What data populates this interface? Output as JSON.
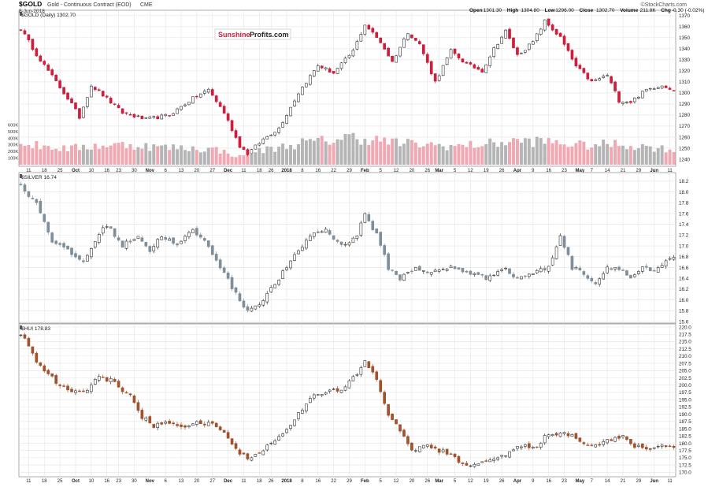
{
  "header": {
    "symbol": "$GOLD",
    "description": "Gold - Continuous Contract (EOD)",
    "exchange": "CME",
    "date": "8-Jun-2018",
    "watermark": "©StockCharts.com",
    "ohlc": [
      {
        "label": "Open",
        "value": "1301.30"
      },
      {
        "label": "High",
        "value": "1304.80"
      },
      {
        "label": "Low",
        "value": "1296.00"
      },
      {
        "label": "Close",
        "value": "1302.70"
      },
      {
        "label": "Volume",
        "value": "211.8K"
      },
      {
        "label": "Chg",
        "value": "-0.30 (-0.02%)"
      }
    ]
  },
  "logo": {
    "part1": "Sunshine",
    "part2": "Profits.com"
  },
  "colors": {
    "up": "#ffffff",
    "gold_down": "#cc1f3c",
    "silver_down": "#7f8e99",
    "hui_down": "#a0522d",
    "vol_up": "#b5b5b5",
    "vol_down": "#f0a8b3",
    "grid": "#e4e4e4"
  },
  "x_axis": {
    "labels": [
      "11",
      "18",
      "25",
      "Oct",
      "10",
      "16",
      "23",
      "30",
      "Nov",
      "6",
      "13",
      "20",
      "27",
      "Dec",
      "11",
      "18",
      "26",
      "2018",
      "8",
      "16",
      "22",
      "29",
      "Feb",
      "5",
      "12",
      "20",
      "26",
      "Mar",
      "5",
      "12",
      "19",
      "26",
      "Apr",
      "9",
      "16",
      "23",
      "May",
      "7",
      "14",
      "21",
      "29",
      "Jun",
      "11"
    ]
  },
  "chart_data": [
    {
      "type": "candlestick",
      "panel": "gold",
      "label": "$GOLD (Daily) 1302.70",
      "ylim": [
        1235,
        1372
      ],
      "yticks": [
        "1240",
        "1250",
        "1260",
        "1270",
        "1280",
        "1290",
        "1300",
        "1310",
        "1320",
        "1330",
        "1340",
        "1350",
        "1360",
        "1370"
      ],
      "volume_ticks": [
        "100K",
        "200K",
        "300K",
        "400K",
        "500K",
        "600K"
      ],
      "anchors": [
        [
          0,
          1358
        ],
        [
          4,
          1335
        ],
        [
          9,
          1310
        ],
        [
          13,
          1290
        ],
        [
          15,
          1278
        ],
        [
          18,
          1307
        ],
        [
          21,
          1298
        ],
        [
          26,
          1282
        ],
        [
          32,
          1276
        ],
        [
          38,
          1280
        ],
        [
          44,
          1295
        ],
        [
          48,
          1303
        ],
        [
          52,
          1282
        ],
        [
          56,
          1252
        ],
        [
          58,
          1245
        ],
        [
          62,
          1258
        ],
        [
          66,
          1268
        ],
        [
          71,
          1300
        ],
        [
          76,
          1325
        ],
        [
          80,
          1318
        ],
        [
          85,
          1338
        ],
        [
          88,
          1362
        ],
        [
          92,
          1346
        ],
        [
          95,
          1328
        ],
        [
          99,
          1355
        ],
        [
          102,
          1344
        ],
        [
          106,
          1310
        ],
        [
          110,
          1338
        ],
        [
          114,
          1326
        ],
        [
          118,
          1320
        ],
        [
          121,
          1340
        ],
        [
          124,
          1356
        ],
        [
          127,
          1334
        ],
        [
          131,
          1346
        ],
        [
          134,
          1365
        ],
        [
          138,
          1350
        ],
        [
          142,
          1324
        ],
        [
          146,
          1310
        ],
        [
          150,
          1316
        ],
        [
          153,
          1293
        ],
        [
          156,
          1292
        ],
        [
          160,
          1303
        ],
        [
          164,
          1307
        ],
        [
          167,
          1303
        ]
      ],
      "volume_anchors": [
        [
          0,
          310
        ],
        [
          6,
          280
        ],
        [
          12,
          240
        ],
        [
          20,
          290
        ],
        [
          28,
          300
        ],
        [
          34,
          270
        ],
        [
          42,
          250
        ],
        [
          50,
          230
        ],
        [
          56,
          120
        ],
        [
          60,
          200
        ],
        [
          66,
          260
        ],
        [
          72,
          330
        ],
        [
          78,
          360
        ],
        [
          84,
          420
        ],
        [
          90,
          380
        ],
        [
          96,
          330
        ],
        [
          104,
          300
        ],
        [
          112,
          280
        ],
        [
          120,
          320
        ],
        [
          128,
          360
        ],
        [
          136,
          340
        ],
        [
          144,
          290
        ],
        [
          152,
          310
        ],
        [
          160,
          270
        ],
        [
          167,
          230
        ]
      ]
    },
    {
      "type": "candlestick",
      "panel": "silver",
      "label": "$SILVER 16.74",
      "ylim": [
        15.6,
        18.3
      ],
      "yticks": [
        "15.6",
        "15.8",
        "16.0",
        "16.2",
        "16.4",
        "16.6",
        "16.8",
        "17.0",
        "17.2",
        "17.4",
        "17.6",
        "17.8",
        "18.0",
        "18.2"
      ],
      "anchors": [
        [
          0,
          18.1
        ],
        [
          4,
          17.8
        ],
        [
          8,
          17.1
        ],
        [
          12,
          16.9
        ],
        [
          16,
          16.7
        ],
        [
          19,
          17.1
        ],
        [
          22,
          17.4
        ],
        [
          26,
          17.0
        ],
        [
          30,
          17.2
        ],
        [
          33,
          16.9
        ],
        [
          36,
          17.2
        ],
        [
          40,
          17.0
        ],
        [
          44,
          17.3
        ],
        [
          48,
          17.0
        ],
        [
          52,
          16.5
        ],
        [
          55,
          16.1
        ],
        [
          58,
          15.8
        ],
        [
          62,
          16.0
        ],
        [
          66,
          16.4
        ],
        [
          70,
          16.8
        ],
        [
          74,
          17.2
        ],
        [
          78,
          17.3
        ],
        [
          82,
          17.0
        ],
        [
          86,
          17.2
        ],
        [
          88,
          17.6
        ],
        [
          91,
          17.2
        ],
        [
          94,
          16.6
        ],
        [
          97,
          16.4
        ],
        [
          101,
          16.6
        ],
        [
          105,
          16.5
        ],
        [
          110,
          16.6
        ],
        [
          115,
          16.5
        ],
        [
          119,
          16.4
        ],
        [
          123,
          16.6
        ],
        [
          127,
          16.4
        ],
        [
          131,
          16.5
        ],
        [
          135,
          16.6
        ],
        [
          138,
          17.2
        ],
        [
          141,
          16.6
        ],
        [
          144,
          16.5
        ],
        [
          147,
          16.3
        ],
        [
          150,
          16.6
        ],
        [
          153,
          16.6
        ],
        [
          156,
          16.4
        ],
        [
          159,
          16.6
        ],
        [
          162,
          16.5
        ],
        [
          165,
          16.7
        ],
        [
          167,
          16.8
        ]
      ]
    },
    {
      "type": "candlestick",
      "panel": "hui",
      "label": "$HUI 178.83",
      "ylim": [
        169,
        220
      ],
      "yticks": [
        "170.0",
        "172.5",
        "175.0",
        "177.5",
        "180.0",
        "182.5",
        "185.0",
        "187.5",
        "190.0",
        "192.5",
        "195.0",
        "197.5",
        "200.0",
        "202.5",
        "205.0",
        "207.5",
        "210.0",
        "212.5",
        "215.0",
        "217.5",
        "220.0"
      ],
      "anchors": [
        [
          0,
          218
        ],
        [
          4,
          208
        ],
        [
          9,
          201
        ],
        [
          13,
          197
        ],
        [
          17,
          199
        ],
        [
          20,
          203
        ],
        [
          24,
          201
        ],
        [
          28,
          196
        ],
        [
          31,
          189
        ],
        [
          34,
          186
        ],
        [
          38,
          187
        ],
        [
          42,
          186
        ],
        [
          46,
          187
        ],
        [
          50,
          186
        ],
        [
          53,
          182
        ],
        [
          56,
          176
        ],
        [
          59,
          175
        ],
        [
          62,
          178
        ],
        [
          66,
          182
        ],
        [
          70,
          188
        ],
        [
          74,
          196
        ],
        [
          78,
          198
        ],
        [
          82,
          198
        ],
        [
          86,
          204
        ],
        [
          88,
          208
        ],
        [
          91,
          202
        ],
        [
          94,
          190
        ],
        [
          97,
          184
        ],
        [
          100,
          178
        ],
        [
          104,
          179
        ],
        [
          108,
          177
        ],
        [
          112,
          174
        ],
        [
          116,
          172
        ],
        [
          120,
          175
        ],
        [
          124,
          176
        ],
        [
          128,
          179
        ],
        [
          131,
          178
        ],
        [
          134,
          182
        ],
        [
          138,
          184
        ],
        [
          142,
          182
        ],
        [
          146,
          179
        ],
        [
          150,
          181
        ],
        [
          154,
          182
        ],
        [
          157,
          179
        ],
        [
          160,
          178
        ],
        [
          163,
          179
        ],
        [
          167,
          179
        ]
      ]
    }
  ]
}
